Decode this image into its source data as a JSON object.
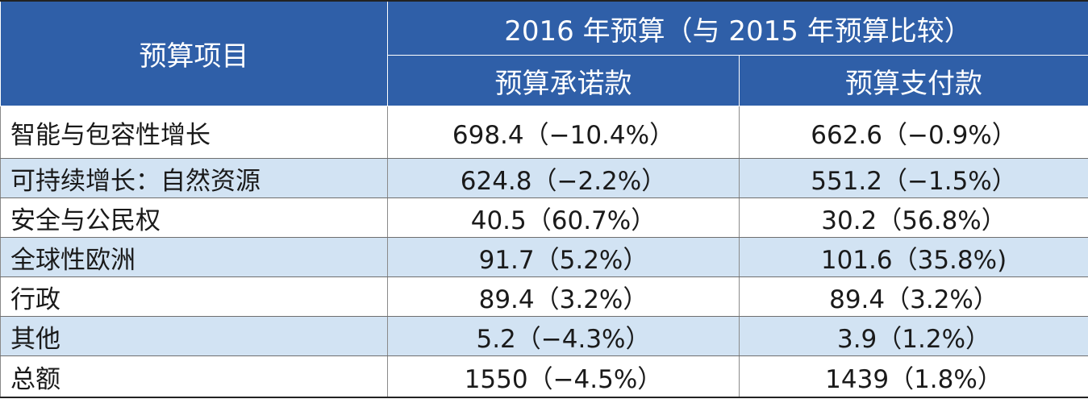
{
  "table": {
    "header": {
      "item_label": "预算项目",
      "group_label": "2016 年预算（与 2015 年预算比较）",
      "commitments_label": "预算承诺款",
      "payments_label": "预算支付款"
    },
    "rows": [
      {
        "item": "智能与包容性增长",
        "commitments": "698.4（−10.4%）",
        "payments": "662.6（−0.9%）"
      },
      {
        "item": "可持续增长：自然资源",
        "commitments": "624.8（−2.2%）",
        "payments": "551.2（−1.5%）"
      },
      {
        "item": "安全与公民权",
        "commitments": "40.5（60.7%）",
        "payments": "30.2（56.8%）"
      },
      {
        "item": "全球性欧洲",
        "commitments": "91.7（5.2%）",
        "payments": "101.6（35.8%)"
      },
      {
        "item": "行政",
        "commitments": "89.4（3.2%）",
        "payments": "89.4（3.2%）"
      },
      {
        "item": "其他",
        "commitments": "5.2（−4.3%）",
        "payments": "3.9（1.2%）"
      },
      {
        "item": "总额",
        "commitments": "1550（−4.5%）",
        "payments": "1439（1.8%）"
      }
    ]
  }
}
